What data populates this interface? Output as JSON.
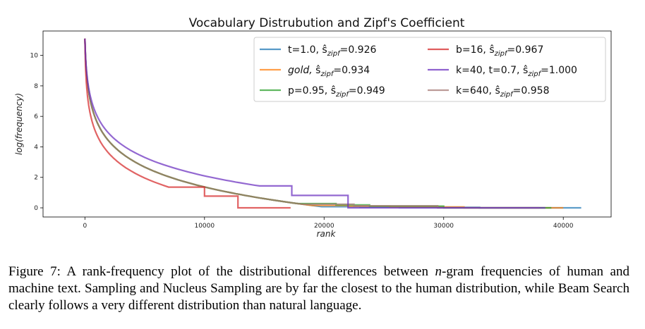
{
  "chart_data": {
    "type": "line",
    "title": "Vocabulary Distrubution and Zipf's Coefficient",
    "xlabel": "rank",
    "ylabel": "log(frequency)",
    "xlim": [
      -3500,
      44000
    ],
    "ylim": [
      -0.6,
      11.6
    ],
    "xticks": [
      0,
      10000,
      20000,
      30000,
      40000
    ],
    "xtick_labels": [
      "0",
      "10000",
      "20000",
      "30000",
      "40000"
    ],
    "yticks": [
      0,
      2,
      4,
      6,
      8,
      10
    ],
    "ytick_labels": [
      "0",
      "2",
      "4",
      "6",
      "8",
      "10"
    ],
    "grid": false,
    "legend_position": "top-right",
    "series": [
      {
        "name": "t=1.0, ŝzipf=0.926",
        "legend_label": {
          "var": "t",
          "val": "1.0",
          "coef": "0.926"
        },
        "color": "#1f77b4",
        "zipf": 0.926,
        "max_rank": 33000,
        "drop_ranks": [
          20000,
          23000,
          26300
        ],
        "end_rank": 41500,
        "steep": 1.0
      },
      {
        "name": "gold, ŝzipf=0.934",
        "legend_label": {
          "var": "gold",
          "val": "",
          "coef": "0.934"
        },
        "color": "#ff7f0e",
        "zipf": 0.934,
        "max_rank": 31700,
        "drop_ranks": [
          19000,
          22000,
          25500
        ],
        "end_rank": 40000,
        "steep": 1.0
      },
      {
        "name": "p=0.95, ŝzipf=0.949",
        "legend_label": {
          "var": "p",
          "val": "0.95",
          "coef": "0.949"
        },
        "color": "#2ca02c",
        "zipf": 0.949,
        "max_rank": 30000,
        "drop_ranks": [
          18000,
          21000,
          23800
        ],
        "end_rank": 39000,
        "steep": 1.0
      },
      {
        "name": "b=16, ŝzipf=0.967",
        "legend_label": {
          "var": "b",
          "val": "16",
          "coef": "0.967"
        },
        "color": "#d62728",
        "zipf": 0.967,
        "max_rank": 12800,
        "drop_ranks": [
          7000,
          10000
        ],
        "end_rank": 17200,
        "steep": 1.6
      },
      {
        "name": "k=40, t=0.7, ŝzipf=1.000",
        "legend_label": {
          "var": "k",
          "val": "40, t=0.7",
          "coef": "1.000"
        },
        "color": "#6a2ebf",
        "zipf": 1.0,
        "max_rank": 22000,
        "drop_ranks": [
          14800,
          17300
        ],
        "end_rank": 38500,
        "steep": 1.1
      },
      {
        "name": "k=640, ŝzipf=0.958",
        "legend_label": {
          "var": "k",
          "val": "640",
          "coef": "0.958"
        },
        "color": "#a57a76",
        "zipf": 0.958,
        "max_rank": 29500,
        "drop_ranks": [
          18500,
          22500
        ],
        "end_rank": 38000,
        "steep": 1.0
      }
    ]
  },
  "caption": {
    "label": "Figure 7:",
    "text_before": " A rank-frequency plot of the distributional differences between ",
    "math": "n",
    "text_after": "-gram frequencies of human and machine text.  Sampling and Nucleus Sampling are by far the closest to the human distribution, while Beam Search clearly follows a very different distribution than natural language."
  }
}
